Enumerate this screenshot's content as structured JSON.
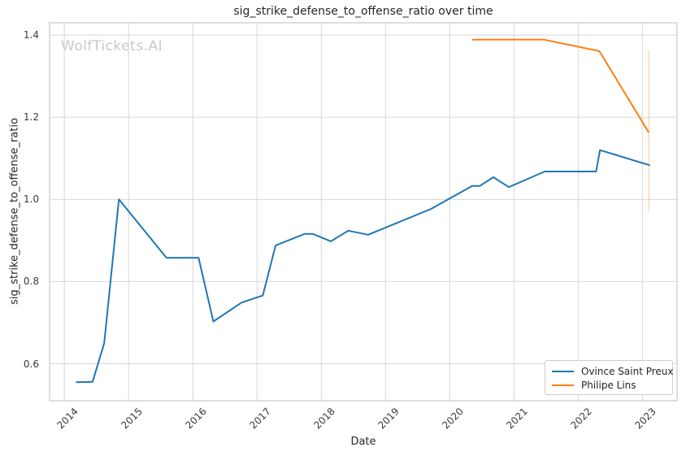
{
  "watermark": "WolfTickets.AI",
  "chart_data": {
    "type": "line",
    "title": "sig_strike_defense_to_offense_ratio over time",
    "xlabel": "Date",
    "ylabel": "sig_strike_defense_to_offense_ratio",
    "xlim": [
      2013.77,
      2023.54
    ],
    "ylim": [
      0.51,
      1.43
    ],
    "x_ticks": [
      2014,
      2015,
      2016,
      2017,
      2018,
      2019,
      2020,
      2021,
      2022,
      2023
    ],
    "y_ticks": [
      0.6,
      0.8,
      1.0,
      1.2,
      1.4
    ],
    "grid": true,
    "legend": {
      "position": "lower right",
      "entries": [
        "Ovince Saint Preux",
        "Philipe Lins"
      ]
    },
    "series": [
      {
        "name": "Ovince Saint Preux",
        "color": "#1f77b4",
        "points": [
          [
            2014.18,
            0.555
          ],
          [
            2014.44,
            0.556
          ],
          [
            2014.62,
            0.65
          ],
          [
            2014.85,
            1.0
          ],
          [
            2015.59,
            0.858
          ],
          [
            2016.09,
            0.858
          ],
          [
            2016.32,
            0.703
          ],
          [
            2016.76,
            0.749
          ],
          [
            2017.09,
            0.766
          ],
          [
            2017.29,
            0.888
          ],
          [
            2017.74,
            0.916
          ],
          [
            2017.87,
            0.916
          ],
          [
            2018.15,
            0.898
          ],
          [
            2018.42,
            0.924
          ],
          [
            2018.73,
            0.914
          ],
          [
            2019.71,
            0.977
          ],
          [
            2020.35,
            1.033
          ],
          [
            2020.47,
            1.033
          ],
          [
            2020.68,
            1.054
          ],
          [
            2020.92,
            1.03
          ],
          [
            2021.48,
            1.068
          ],
          [
            2022.28,
            1.068
          ],
          [
            2022.34,
            1.12
          ],
          [
            2023.12,
            1.083
          ]
        ]
      },
      {
        "name": "Philipe Lins",
        "color": "#ff7f0e",
        "points": [
          [
            2020.35,
            1.389
          ],
          [
            2021.46,
            1.389
          ],
          [
            2022.33,
            1.361
          ],
          [
            2023.1,
            1.163
          ]
        ],
        "error_bar": {
          "x": 2023.1,
          "low": 0.971,
          "high": 1.363
        }
      }
    ]
  }
}
